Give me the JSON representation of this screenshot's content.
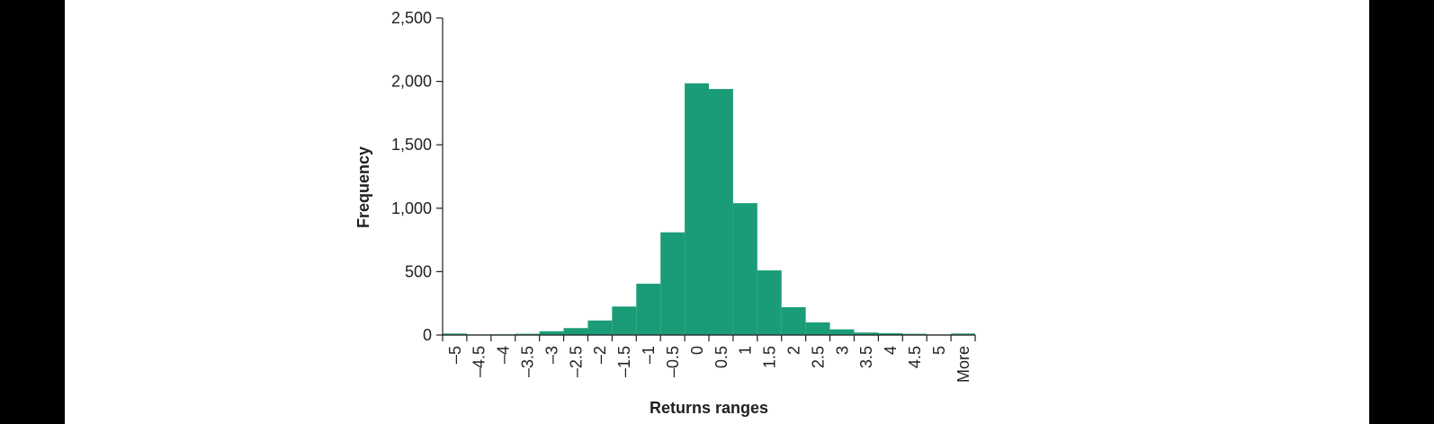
{
  "chart_data": {
    "type": "bar",
    "categories": [
      "–5",
      "–4.5",
      "–4",
      "–3.5",
      "–3",
      "–2.5",
      "–2",
      "–1.5",
      "–1",
      "–0.5",
      "0",
      "0.5",
      "1",
      "1.5",
      "2",
      "2.5",
      "3",
      "3.5",
      "4",
      "4.5",
      "5",
      "More"
    ],
    "values": [
      12,
      5,
      6,
      10,
      30,
      55,
      115,
      225,
      405,
      810,
      1985,
      1940,
      1040,
      510,
      220,
      100,
      45,
      20,
      15,
      10,
      5,
      12
    ],
    "xlabel": "Returns ranges",
    "ylabel": "Frequency",
    "ylim": [
      0,
      2500
    ],
    "yticks": [
      0,
      500,
      1000,
      1500,
      2000,
      2500
    ],
    "ytick_labels": [
      "0",
      "500",
      "1,000",
      "1,500",
      "2,000",
      "2,500"
    ],
    "bar_color": "#1b9c78",
    "grid": false,
    "legend": "none"
  }
}
